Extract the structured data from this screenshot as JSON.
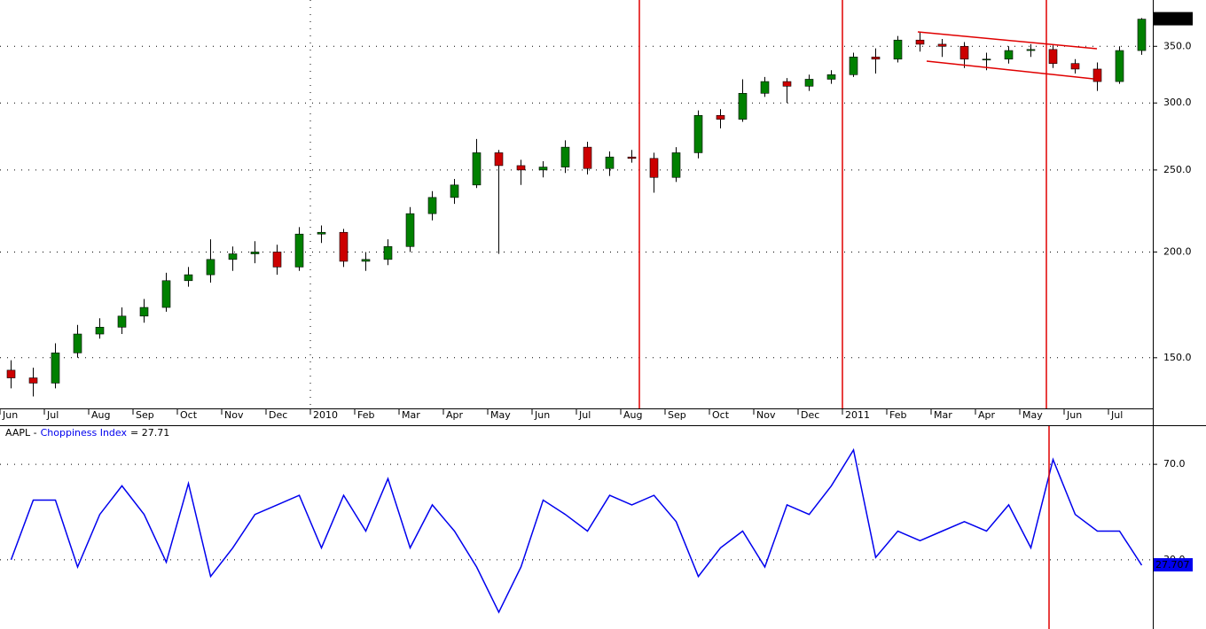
{
  "chart_data": [
    {
      "type": "candlestick",
      "categories": [
        "Jun",
        null,
        "Jul",
        null,
        "Aug",
        null,
        "Sep",
        null,
        "Oct",
        null,
        "Nov",
        null,
        "Dec",
        null,
        "2010",
        null,
        "Feb",
        null,
        "Mar",
        null,
        "Apr",
        null,
        "May",
        null,
        "Jun",
        null,
        "Jul",
        null,
        "Aug",
        null,
        "Sep",
        null,
        "Oct",
        null,
        "Nov",
        null,
        "Dec",
        null,
        "2011",
        null,
        "Feb",
        null,
        "Mar",
        null,
        "Apr",
        null,
        "May",
        null,
        "Jun",
        null,
        "Jul",
        null
      ],
      "open": [
        145,
        142,
        140,
        152,
        160,
        163,
        168,
        172,
        185,
        188,
        196,
        199,
        200,
        192,
        210,
        211,
        195,
        196,
        203,
        222,
        232,
        240,
        262,
        253,
        250,
        252,
        266,
        251,
        259,
        258,
        245,
        262,
        290,
        287,
        308,
        318,
        314,
        320,
        324,
        340,
        338,
        356,
        352,
        350,
        338,
        338,
        346,
        347,
        334,
        329,
        318,
        346
      ],
      "high": [
        149,
        146,
        156,
        164,
        167,
        172,
        176,
        189,
        192,
        207,
        203,
        206,
        204,
        214,
        215,
        213,
        200,
        207,
        226,
        236,
        244,
        272,
        264,
        257,
        256,
        271,
        270,
        263,
        264,
        262,
        266,
        294,
        295,
        320,
        322,
        321,
        324,
        328,
        344,
        348,
        360,
        364,
        357,
        354,
        344,
        350,
        352,
        351,
        338,
        335,
        350,
        378
      ],
      "low": [
        138,
        135,
        138,
        150,
        158,
        160,
        165,
        170,
        182,
        184,
        190,
        194,
        188,
        190,
        205,
        192,
        190,
        193,
        200,
        218,
        228,
        238,
        199,
        240,
        245,
        248,
        247,
        246,
        255,
        235,
        242,
        258,
        280,
        285,
        305,
        300,
        310,
        316,
        322,
        325,
        335,
        345,
        340,
        330,
        328,
        334,
        340,
        330,
        325,
        310,
        316,
        342
      ],
      "close": [
        142,
        140,
        152,
        160,
        163,
        168,
        172,
        185,
        188,
        196,
        199,
        200,
        192,
        210,
        211,
        195,
        196,
        203,
        222,
        232,
        240,
        262,
        253,
        250,
        252,
        266,
        251,
        259,
        258,
        245,
        262,
        290,
        287,
        308,
        318,
        314,
        320,
        324,
        340,
        338,
        356,
        352,
        350,
        338,
        338,
        346,
        347,
        334,
        329,
        318,
        346,
        376.85
      ],
      "colors": {
        "up": "#008000",
        "down": "#cc0000"
      },
      "log_scale": true,
      "grid": true,
      "ylim": [
        131,
        397
      ],
      "yticks": [
        {
          "value": 150,
          "label": "150.0"
        },
        {
          "value": 200,
          "label": "200.0"
        },
        {
          "value": 250,
          "label": "250.0"
        },
        {
          "value": 300,
          "label": "300.0"
        },
        {
          "value": 350,
          "label": "350.0"
        }
      ]
    },
    {
      "type": "line",
      "symbol": "AAPL -",
      "title_value": "= 27.71",
      "series": [
        {
          "name": "Choppiness Index",
          "color": "#0000ee",
          "values": [
            30,
            55,
            55,
            27,
            49,
            61,
            49,
            29,
            62,
            23,
            35,
            49,
            53,
            57,
            35,
            57,
            42,
            64,
            35,
            53,
            42,
            27,
            8,
            27,
            55,
            49,
            42,
            57,
            53,
            57,
            46,
            23,
            35,
            42,
            27,
            53,
            49,
            61,
            76,
            31,
            42,
            38,
            42,
            46,
            42,
            53,
            35,
            72,
            49,
            42,
            42,
            27.707
          ]
        }
      ],
      "grid": true,
      "ylim": [
        1,
        86
      ],
      "yticks": [
        {
          "value": 30,
          "label": "30.0"
        },
        {
          "value": 70,
          "label": "70.0"
        }
      ]
    }
  ]
}
